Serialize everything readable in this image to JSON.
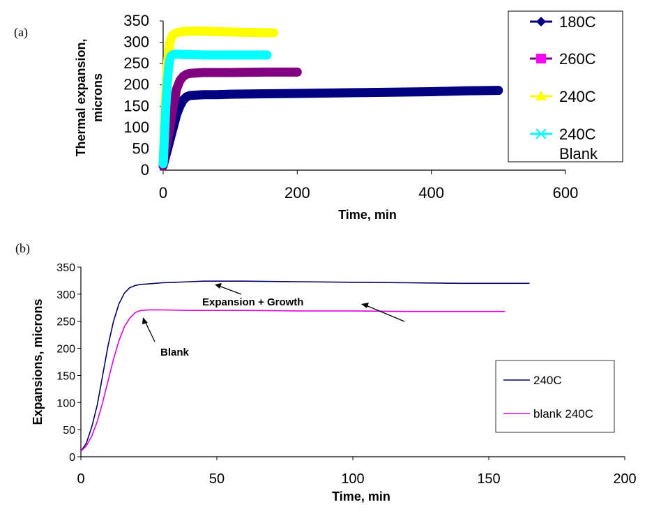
{
  "chart_data": [
    {
      "panel_label": "(a)",
      "type": "line",
      "title": "",
      "xlabel": "Time, min",
      "ylabel_lines": [
        "Thermal expansion,",
        "microns"
      ],
      "xlim": [
        0,
        600
      ],
      "ylim": [
        0,
        350
      ],
      "xticks": [
        0,
        200,
        400,
        600
      ],
      "yticks": [
        0,
        50,
        100,
        150,
        200,
        250,
        300,
        350
      ],
      "grid": false,
      "legend_position": "top-right",
      "series": [
        {
          "name": "180C",
          "legend_lines": [
            "180C"
          ],
          "color": "#000080",
          "marker": "diamond",
          "x": [
            0,
            5,
            10,
            15,
            20,
            25,
            30,
            35,
            40,
            50,
            60,
            80,
            100,
            150,
            200,
            250,
            300,
            350,
            400,
            450,
            500
          ],
          "y": [
            10,
            40,
            70,
            100,
            130,
            150,
            165,
            172,
            175,
            176,
            177,
            177,
            178,
            179,
            180,
            181,
            182,
            183,
            184,
            186,
            187
          ]
        },
        {
          "name": "260C",
          "legend_lines": [
            "260C"
          ],
          "color": "#800080",
          "marker": "square",
          "x": [
            0,
            5,
            10,
            15,
            20,
            25,
            30,
            35,
            40,
            50,
            60,
            80,
            100,
            150,
            200
          ],
          "y": [
            10,
            60,
            100,
            150,
            190,
            210,
            220,
            225,
            227,
            228,
            229,
            229,
            229,
            230,
            230
          ]
        },
        {
          "name": "240C",
          "legend_lines": [
            "240C"
          ],
          "color": "#FFFF00",
          "marker": "triangle",
          "x": [
            0,
            2,
            4,
            6,
            8,
            10,
            12,
            15,
            20,
            25,
            30,
            40,
            50,
            60,
            80,
            100,
            130,
            165
          ],
          "y": [
            20,
            100,
            180,
            240,
            280,
            300,
            310,
            318,
            322,
            324,
            325,
            326,
            326,
            326,
            325,
            324,
            323,
            322
          ]
        },
        {
          "name": "240C Blank",
          "legend_lines": [
            "240C",
            "Blank"
          ],
          "color": "#00FFFF",
          "marker": "x",
          "x": [
            0,
            2,
            4,
            6,
            8,
            10,
            12,
            15,
            20,
            25,
            30,
            40,
            60,
            80,
            100,
            130,
            155
          ],
          "y": [
            15,
            80,
            150,
            200,
            240,
            260,
            268,
            271,
            272,
            272,
            271,
            271,
            270,
            270,
            270,
            270,
            270
          ]
        }
      ]
    },
    {
      "panel_label": "(b)",
      "type": "line",
      "title": "",
      "xlabel": "Time, min",
      "ylabel": "Expansions, microns",
      "xlim": [
        0,
        200
      ],
      "ylim": [
        0,
        350
      ],
      "xticks": [
        0,
        50,
        100,
        150,
        200
      ],
      "yticks": [
        0,
        50,
        100,
        150,
        200,
        250,
        300,
        350
      ],
      "grid": false,
      "legend_position": "lower-right",
      "series": [
        {
          "name": "240C",
          "color": "#000066",
          "x": [
            0,
            2,
            4,
            6,
            8,
            10,
            12,
            14,
            16,
            18,
            20,
            22,
            25,
            30,
            35,
            40,
            45,
            50,
            60,
            80,
            100,
            120,
            140,
            165
          ],
          "y": [
            10,
            25,
            55,
            95,
            150,
            205,
            250,
            282,
            302,
            312,
            316,
            318,
            319,
            321,
            322,
            323,
            324,
            324,
            324,
            323,
            322,
            321,
            320,
            320
          ]
        },
        {
          "name": "blank 240C",
          "color": "#DD00DD",
          "x": [
            0,
            2,
            4,
            6,
            8,
            10,
            12,
            14,
            16,
            18,
            20,
            22,
            25,
            30,
            40,
            50,
            60,
            80,
            100,
            120,
            140,
            156
          ],
          "y": [
            10,
            20,
            38,
            65,
            100,
            140,
            180,
            214,
            240,
            256,
            266,
            270,
            271,
            271,
            270,
            270,
            270,
            269,
            269,
            268,
            268,
            268
          ]
        }
      ],
      "annotations": [
        {
          "text": "Expansion + Growth"
        },
        {
          "text": "Blank"
        }
      ]
    }
  ]
}
